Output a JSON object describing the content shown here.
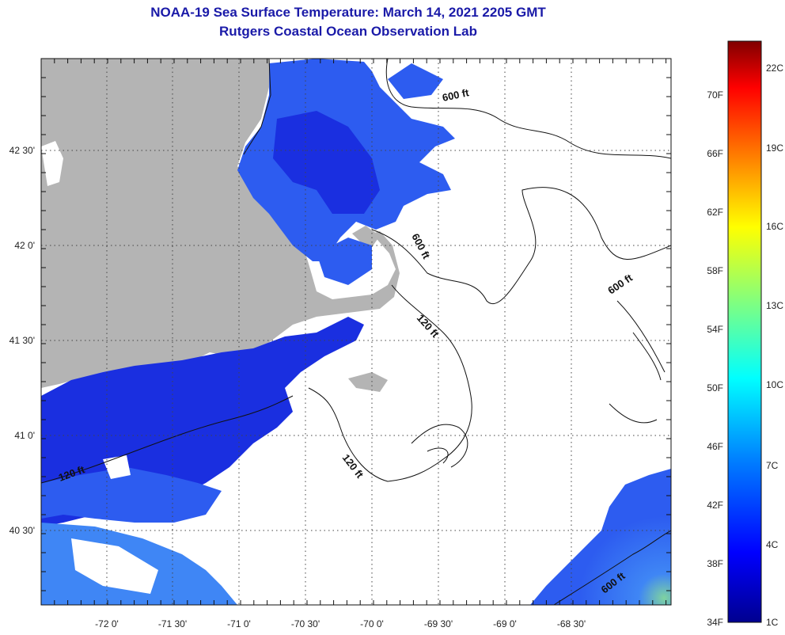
{
  "title": {
    "line1": "NOAA-19 Sea Surface Temperature:  March 14, 2021 2205 GMT",
    "line2": "Rutgers Coastal Ocean Observation Lab"
  },
  "axes": {
    "longitude_labels": [
      "-72 0'",
      "-71 30'",
      "-71 0'",
      "-70 30'",
      "-70 0'",
      "-69 30'",
      "-69 0'",
      "-68 30'"
    ],
    "latitude_labels": [
      "42 30'",
      "42 0'",
      "41 30'",
      "41 0'",
      "40 30'"
    ]
  },
  "contour_labels": [
    "600 ft",
    "600 ft",
    "600 ft",
    "120 ft",
    "120 ft",
    "120 ft",
    "600 ft"
  ],
  "colorbar": {
    "fahrenheit_labels": [
      "70F",
      "66F",
      "62F",
      "58F",
      "54F",
      "50F",
      "46F",
      "42F",
      "38F",
      "34F"
    ],
    "celsius_labels": [
      "22C",
      "19C",
      "16C",
      "13C",
      "10C",
      "7C",
      "4C",
      "1C"
    ],
    "colors": [
      "#00008f",
      "#0000ff",
      "#0080ff",
      "#00ffff",
      "#80ff80",
      "#ffff00",
      "#ff8000",
      "#ff0000",
      "#800000"
    ]
  },
  "colors": {
    "land": "#b4b4b4",
    "sst_cold": "#1a2fe0",
    "sst_mid": "#2d5cf0",
    "sst_light": "#3f86f5",
    "title": "#1a1aa8"
  }
}
